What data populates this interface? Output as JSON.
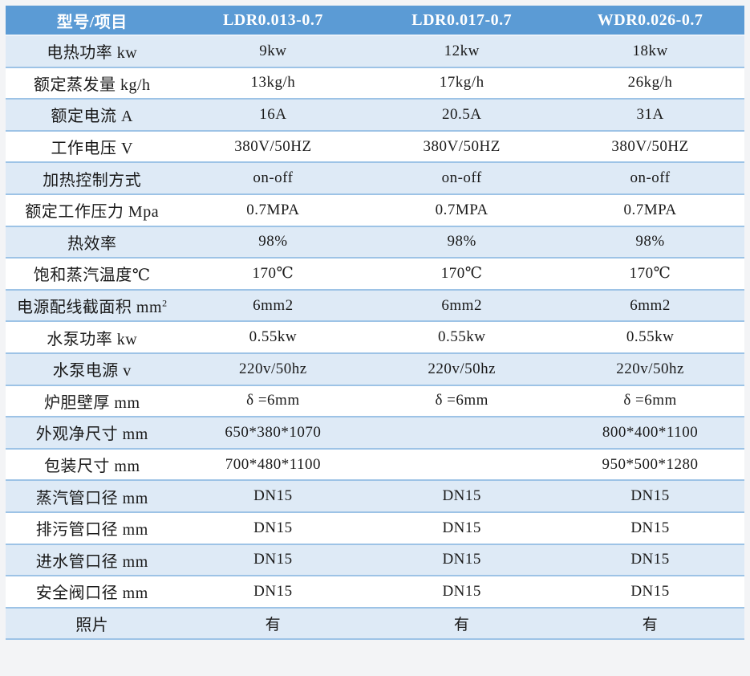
{
  "table": {
    "headers": [
      "型号/项目",
      "LDR0.013-0.7",
      "LDR0.017-0.7",
      "WDR0.026-0.7"
    ],
    "rows": [
      {
        "label": "电热功率 kw",
        "values": [
          "9kw",
          "12kw",
          "18kw"
        ]
      },
      {
        "label": "额定蒸发量 kg/h",
        "values": [
          "13kg/h",
          "17kg/h",
          "26kg/h"
        ]
      },
      {
        "label": "额定电流 A",
        "values": [
          "16A",
          "20.5A",
          "31A"
        ]
      },
      {
        "label": "工作电压 V",
        "values": [
          "380V/50HZ",
          "380V/50HZ",
          "380V/50HZ"
        ]
      },
      {
        "label": "加热控制方式",
        "values": [
          "on-off",
          "on-off",
          "on-off"
        ]
      },
      {
        "label": "额定工作压力 Mpa",
        "values": [
          "0.7MPA",
          "0.7MPA",
          "0.7MPA"
        ]
      },
      {
        "label": "热效率",
        "values": [
          "98%",
          "98%",
          "98%"
        ]
      },
      {
        "label": "饱和蒸汽温度℃",
        "values": [
          "170℃",
          "170℃",
          "170℃"
        ]
      },
      {
        "label": "电源配线截面积 mm²",
        "values": [
          "6mm2",
          "6mm2",
          "6mm2"
        ]
      },
      {
        "label": "水泵功率 kw",
        "values": [
          "0.55kw",
          "0.55kw",
          "0.55kw"
        ]
      },
      {
        "label": "水泵电源 v",
        "values": [
          "220v/50hz",
          "220v/50hz",
          "220v/50hz"
        ]
      },
      {
        "label": "炉胆壁厚 mm",
        "values": [
          "δ =6mm",
          "δ =6mm",
          "δ =6mm"
        ]
      },
      {
        "label": "外观净尺寸 mm",
        "values": [
          "650*380*1070",
          "",
          "800*400*1100"
        ]
      },
      {
        "label": "包装尺寸 mm",
        "values": [
          "700*480*1100",
          "",
          "950*500*1280"
        ]
      },
      {
        "label": "蒸汽管口径 mm",
        "values": [
          "DN15",
          "DN15",
          "DN15"
        ]
      },
      {
        "label": "排污管口径 mm",
        "values": [
          "DN15",
          "DN15",
          "DN15"
        ]
      },
      {
        "label": "进水管口径 mm",
        "values": [
          "DN15",
          "DN15",
          "DN15"
        ]
      },
      {
        "label": "安全阀口径 mm",
        "values": [
          "DN15",
          "DN15",
          "DN15"
        ]
      },
      {
        "label": "照片",
        "values": [
          "有",
          "有",
          "有"
        ]
      }
    ],
    "colors": {
      "header_bg": "#5B9BD5",
      "header_text": "#FFFFFF",
      "row_alt_bg": "#DEEAF6",
      "row_white_bg": "#FFFFFF",
      "separator": "#9DC3E6",
      "text": "#1A1A1A"
    }
  }
}
